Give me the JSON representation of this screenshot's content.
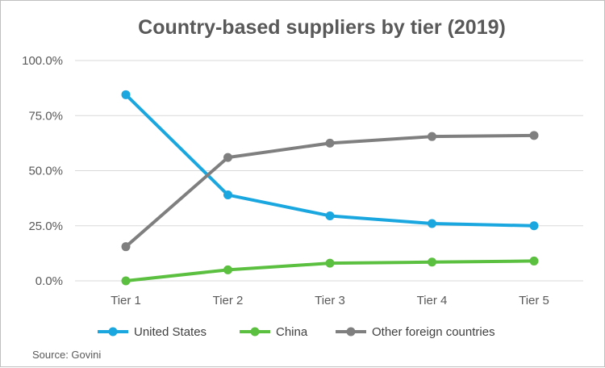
{
  "chart_data": {
    "type": "line",
    "title": "Country-based suppliers by tier (2019)",
    "categories": [
      "Tier 1",
      "Tier 2",
      "Tier 3",
      "Tier 4",
      "Tier 5"
    ],
    "y_ticks": [
      "0.0%",
      "25.0%",
      "50.0%",
      "75.0%",
      "100.0%"
    ],
    "ylim": [
      0,
      100
    ],
    "grid": true,
    "legend_position": "bottom",
    "series": [
      {
        "name": "United States",
        "color": "#1aa7e0",
        "values": [
          84.5,
          39,
          29.5,
          26,
          25
        ]
      },
      {
        "name": "China",
        "color": "#5bbf3f",
        "values": [
          0,
          5,
          8,
          8.5,
          9
        ]
      },
      {
        "name": "Other foreign countries",
        "color": "#7f7f7f",
        "values": [
          15.5,
          56,
          62.5,
          65.5,
          66
        ]
      }
    ]
  },
  "source": "Source: Govini"
}
